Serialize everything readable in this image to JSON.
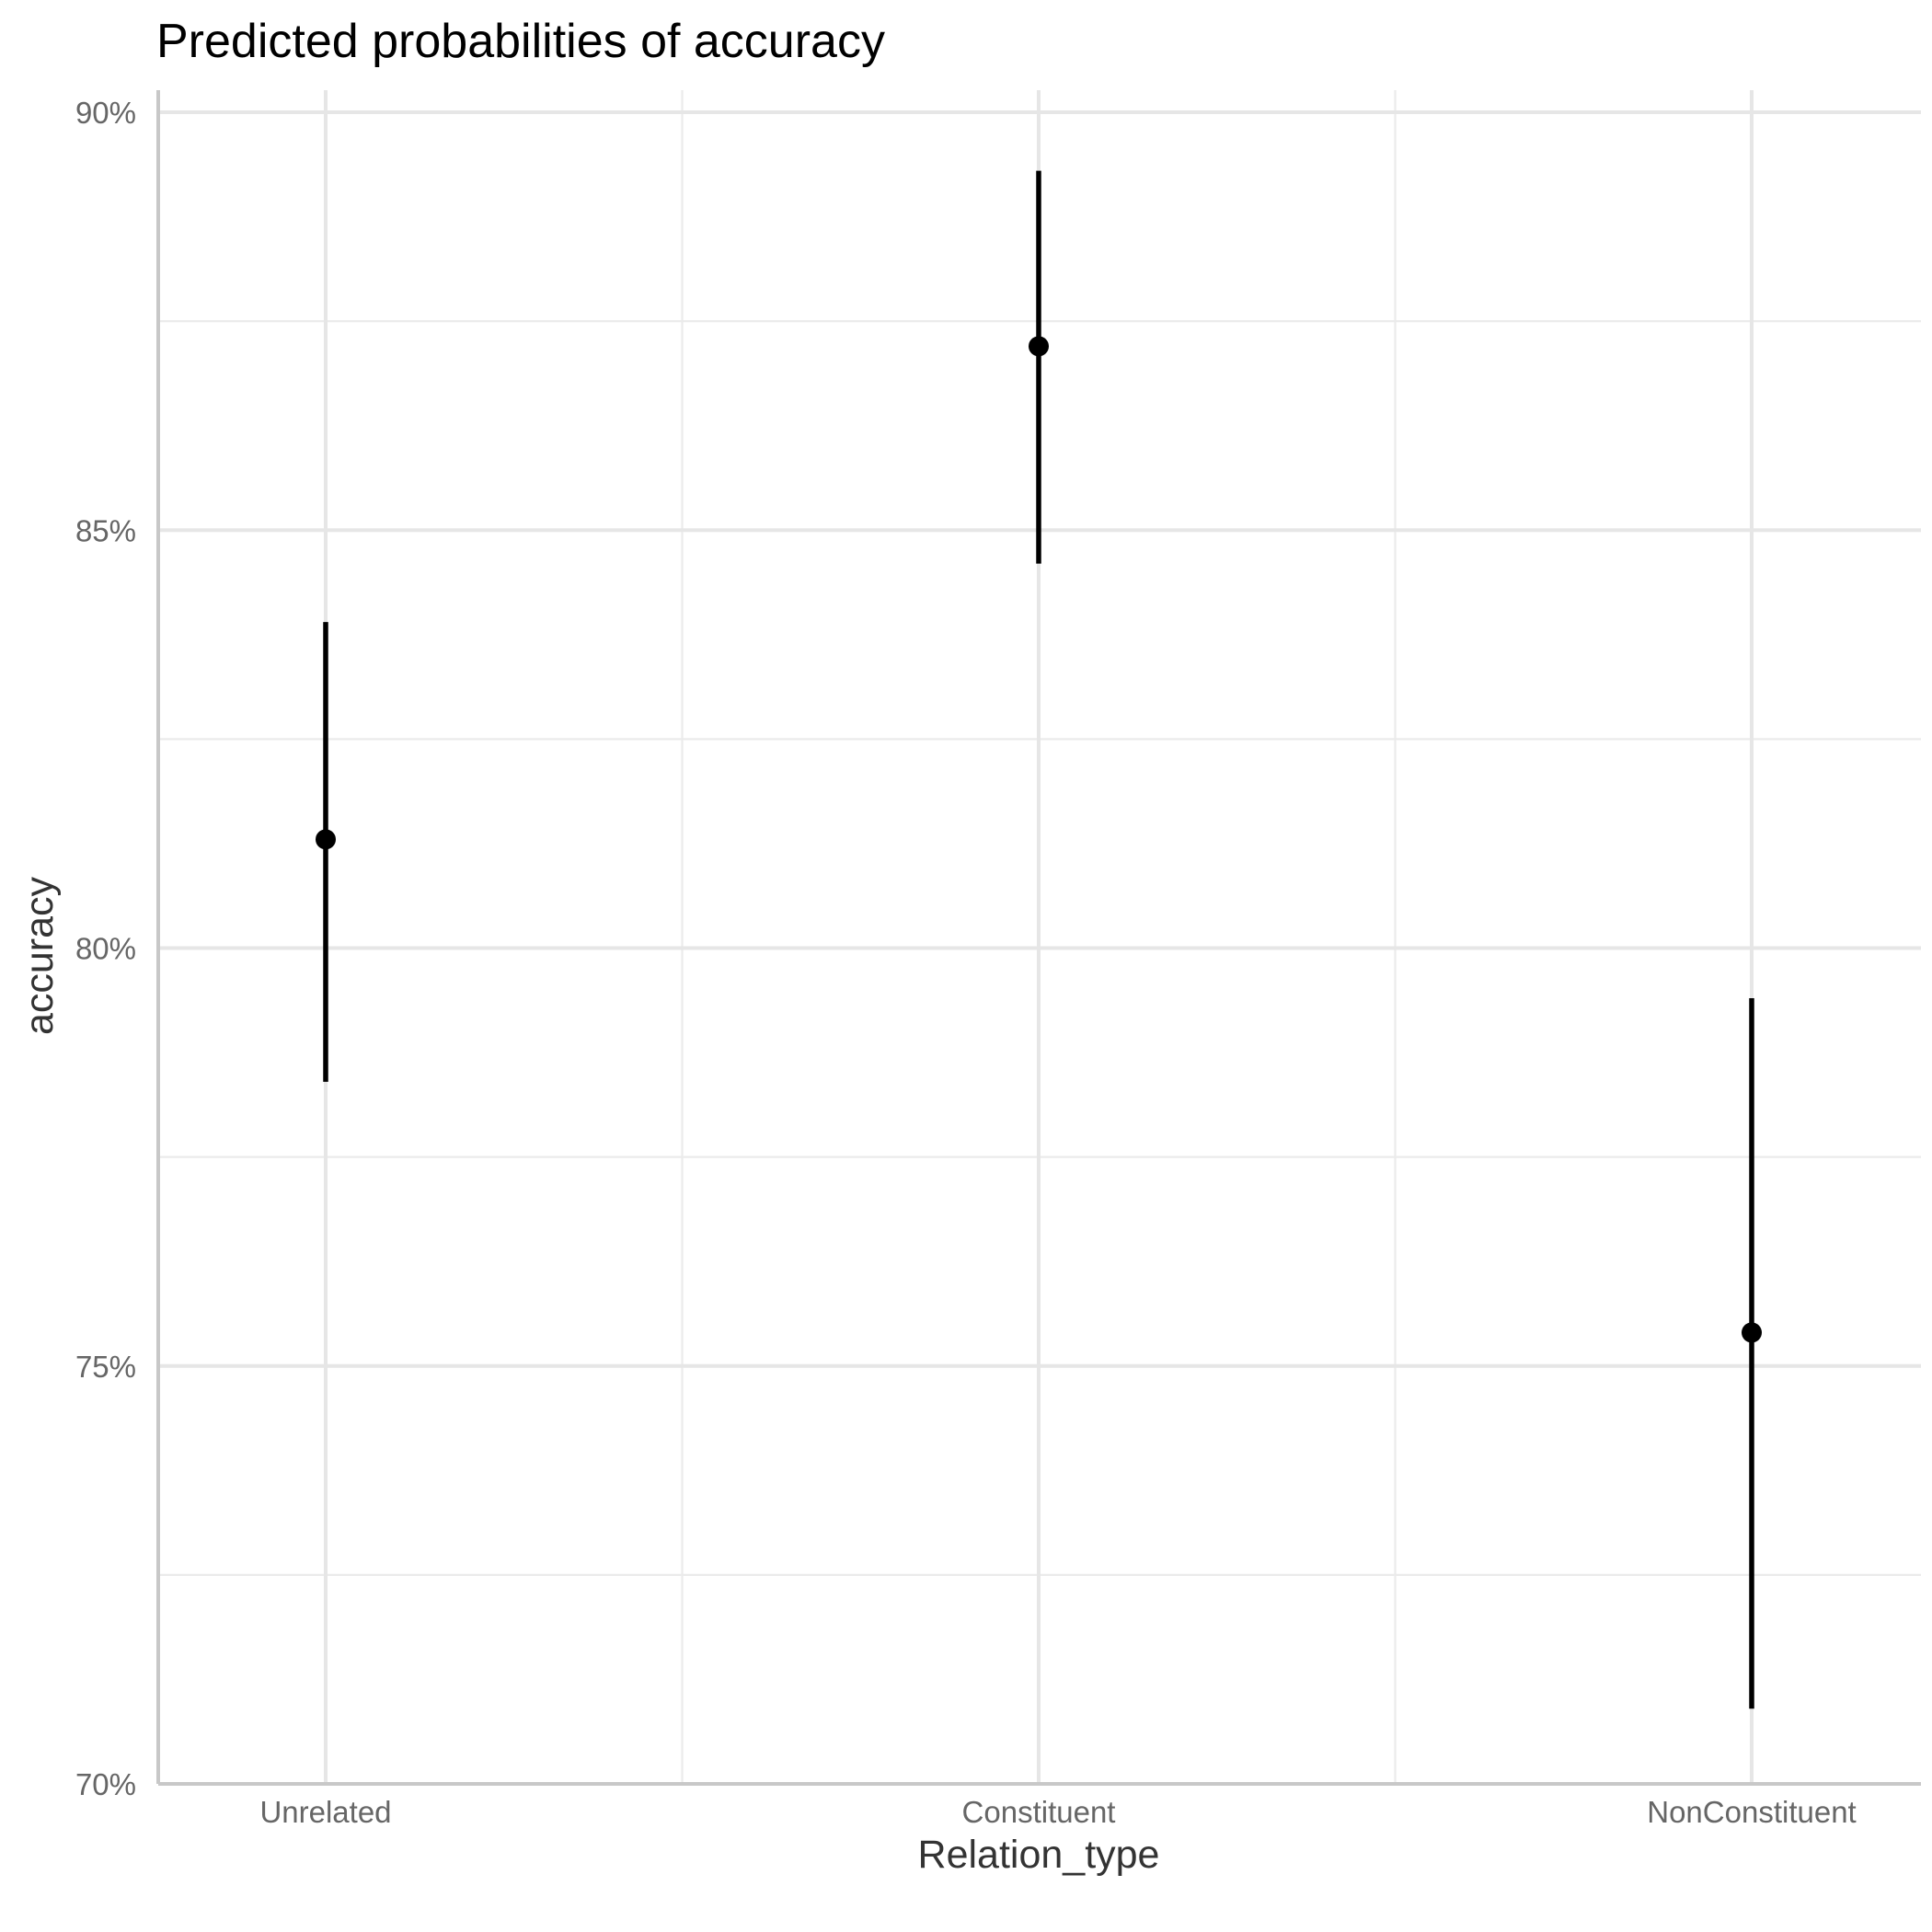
{
  "chart_data": {
    "type": "scatter",
    "title": "Predicted probabilities of accuracy",
    "xlabel": "Relation_type",
    "ylabel": "accuracy",
    "categories": [
      "Unrelated",
      "Constituent",
      "NonConstituent"
    ],
    "values": [
      81.3,
      87.2,
      75.4
    ],
    "lower": [
      78.4,
      84.6,
      70.9
    ],
    "upper": [
      83.9,
      89.3,
      79.4
    ],
    "ylim": [
      70,
      90
    ],
    "y_ticks": [
      70,
      75,
      80,
      85,
      90
    ],
    "y_tick_labels": [
      "70%",
      "75%",
      "80%",
      "85%",
      "90%"
    ],
    "grid": true,
    "legend": "none"
  }
}
